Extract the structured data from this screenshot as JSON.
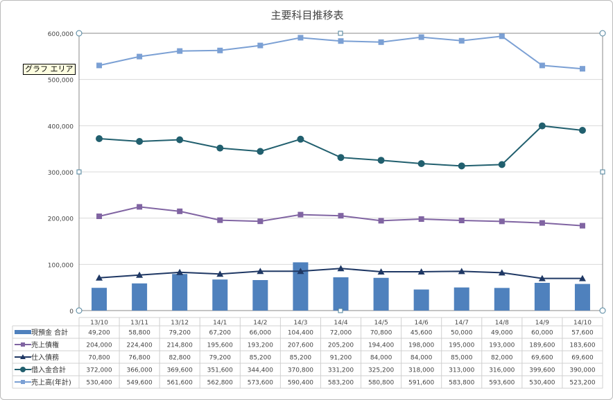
{
  "chart_data": {
    "type": "bar+line",
    "title": "主要科目推移表",
    "tooltip": "グラフ エリア",
    "categories": [
      "13/10",
      "13/11",
      "13/12",
      "14/1",
      "14/2",
      "14/3",
      "14/4",
      "14/5",
      "14/6",
      "14/7",
      "14/8",
      "14/9",
      "14/10"
    ],
    "ylim": [
      0,
      600000
    ],
    "yticks": [
      "0",
      "100,000",
      "200,000",
      "300,000",
      "400,000",
      "500,000",
      "600,000"
    ],
    "series": [
      {
        "name": "現預金 合計",
        "kind": "bar",
        "color": "#4f81bd",
        "values": [
          49200,
          58800,
          79200,
          67200,
          66000,
          104400,
          72000,
          70800,
          45600,
          50000,
          49000,
          60000,
          57600
        ],
        "labels": [
          "49,200",
          "58,800",
          "79,200",
          "67,200",
          "66,000",
          "104,400",
          "72,000",
          "70,800",
          "45,600",
          "50,000",
          "49,000",
          "60,000",
          "57,600"
        ]
      },
      {
        "name": "売上債権",
        "kind": "line",
        "marker": "square",
        "color": "#8064a2",
        "values": [
          204000,
          224400,
          214800,
          195600,
          193200,
          207600,
          205200,
          194400,
          198000,
          195000,
          193000,
          189600,
          183600
        ],
        "labels": [
          "204,000",
          "224,400",
          "214,800",
          "195,600",
          "193,200",
          "207,600",
          "205,200",
          "194,400",
          "198,000",
          "195,000",
          "193,000",
          "189,600",
          "183,600"
        ]
      },
      {
        "name": "仕入債務",
        "kind": "line",
        "marker": "triangle",
        "color": "#1f3864",
        "values": [
          70800,
          76800,
          82800,
          79200,
          85200,
          85200,
          91200,
          84000,
          84000,
          85000,
          82000,
          69600,
          69600
        ],
        "labels": [
          "70,800",
          "76,800",
          "82,800",
          "79,200",
          "85,200",
          "85,200",
          "91,200",
          "84,000",
          "84,000",
          "85,000",
          "82,000",
          "69,600",
          "69,600"
        ]
      },
      {
        "name": "借入金合計",
        "kind": "line",
        "marker": "circle",
        "color": "#215f6e",
        "values": [
          372000,
          366000,
          369600,
          351600,
          344400,
          370800,
          331200,
          325200,
          318000,
          313000,
          316000,
          399600,
          390000
        ],
        "labels": [
          "372,000",
          "366,000",
          "369,600",
          "351,600",
          "344,400",
          "370,800",
          "331,200",
          "325,200",
          "318,000",
          "313,000",
          "316,000",
          "399,600",
          "390,000"
        ]
      },
      {
        "name": "売上高(年計)",
        "kind": "line",
        "marker": "square",
        "color": "#7ba0d4",
        "values": [
          530400,
          549600,
          561600,
          562800,
          573600,
          590400,
          583200,
          580800,
          591600,
          583800,
          593600,
          530400,
          523200
        ],
        "labels": [
          "530,400",
          "549,600",
          "561,600",
          "562,800",
          "573,600",
          "590,400",
          "583,200",
          "580,800",
          "591,600",
          "583,800",
          "593,600",
          "530,400",
          "523,200"
        ]
      }
    ]
  }
}
